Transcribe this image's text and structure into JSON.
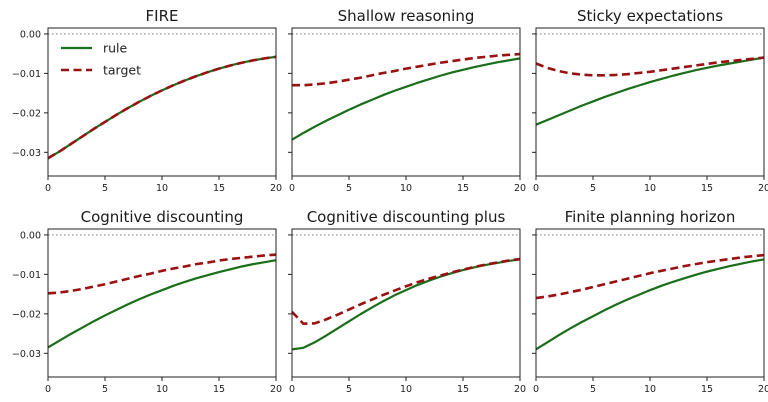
{
  "chart_data": {
    "type": "line",
    "layout": "2x3 grid",
    "legend": {
      "placement": "top-left of first panel",
      "entries": [
        "rule",
        "target"
      ]
    },
    "colors": {
      "rule": "#1a6e1a",
      "target": "#9b1010",
      "zero_line": "#888888"
    },
    "xlim": [
      0,
      20
    ],
    "ylim": [
      -0.036,
      0.0015
    ],
    "x_ticks": [
      0,
      5,
      10,
      15,
      20
    ],
    "x_tick_labels": [
      "0",
      "5",
      "10",
      "15",
      "20"
    ],
    "y_ticks": [
      0.0,
      -0.01,
      -0.02,
      -0.03
    ],
    "y_tick_labels": [
      "0.00",
      "−0.01",
      "−0.02",
      "−0.03"
    ],
    "x": [
      0,
      1,
      2,
      3,
      4,
      5,
      6,
      7,
      8,
      9,
      10,
      11,
      12,
      13,
      14,
      15,
      16,
      17,
      18,
      19,
      20
    ],
    "panels": [
      {
        "title": "FIRE",
        "series": [
          {
            "name": "rule",
            "style": "solid",
            "values": [
              -0.0315,
              -0.0298,
              -0.0279,
              -0.026,
              -0.0241,
              -0.0223,
              -0.0205,
              -0.0188,
              -0.0172,
              -0.0157,
              -0.0143,
              -0.013,
              -0.0118,
              -0.0107,
              -0.0097,
              -0.0088,
              -0.008,
              -0.0073,
              -0.0067,
              -0.0062,
              -0.0058
            ]
          },
          {
            "name": "target",
            "style": "dashed",
            "values": [
              -0.0315,
              -0.0298,
              -0.0279,
              -0.026,
              -0.0241,
              -0.0223,
              -0.0205,
              -0.0188,
              -0.0172,
              -0.0157,
              -0.0143,
              -0.013,
              -0.0118,
              -0.0107,
              -0.0097,
              -0.0088,
              -0.008,
              -0.0073,
              -0.0067,
              -0.0062,
              -0.0058
            ]
          }
        ]
      },
      {
        "title": "Shallow reasoning",
        "series": [
          {
            "name": "rule",
            "style": "solid",
            "values": [
              -0.0268,
              -0.0251,
              -0.0235,
              -0.022,
              -0.0206,
              -0.0192,
              -0.0179,
              -0.0167,
              -0.0155,
              -0.0144,
              -0.0134,
              -0.0124,
              -0.0115,
              -0.0106,
              -0.0098,
              -0.0091,
              -0.0084,
              -0.0078,
              -0.0072,
              -0.0067,
              -0.0062
            ]
          },
          {
            "name": "target",
            "style": "dashed",
            "values": [
              -0.013,
              -0.013,
              -0.0128,
              -0.0125,
              -0.0121,
              -0.0116,
              -0.0111,
              -0.0105,
              -0.0099,
              -0.0094,
              -0.0088,
              -0.0083,
              -0.0078,
              -0.0073,
              -0.0069,
              -0.0065,
              -0.0061,
              -0.0058,
              -0.0055,
              -0.0053,
              -0.0051
            ]
          }
        ]
      },
      {
        "title": "Sticky expectations",
        "series": [
          {
            "name": "rule",
            "style": "solid",
            "values": [
              -0.023,
              -0.0218,
              -0.0206,
              -0.0194,
              -0.0182,
              -0.0171,
              -0.016,
              -0.015,
              -0.014,
              -0.0131,
              -0.0122,
              -0.0114,
              -0.0106,
              -0.0099,
              -0.0092,
              -0.0086,
              -0.008,
              -0.0075,
              -0.007,
              -0.0065,
              -0.006
            ]
          },
          {
            "name": "target",
            "style": "dashed",
            "values": [
              -0.0075,
              -0.0086,
              -0.0094,
              -0.01,
              -0.0103,
              -0.0105,
              -0.0105,
              -0.0104,
              -0.0102,
              -0.0099,
              -0.0096,
              -0.0092,
              -0.0088,
              -0.0084,
              -0.008,
              -0.0076,
              -0.0072,
              -0.0069,
              -0.0066,
              -0.0063,
              -0.006
            ]
          }
        ]
      },
      {
        "title": "Cognitive discounting",
        "series": [
          {
            "name": "rule",
            "style": "solid",
            "values": [
              -0.0285,
              -0.0268,
              -0.0251,
              -0.0235,
              -0.0219,
              -0.0204,
              -0.019,
              -0.0176,
              -0.0163,
              -0.0151,
              -0.014,
              -0.0129,
              -0.0119,
              -0.011,
              -0.0102,
              -0.0094,
              -0.0087,
              -0.008,
              -0.0074,
              -0.0069,
              -0.0064
            ]
          },
          {
            "name": "target",
            "style": "dashed",
            "values": [
              -0.0148,
              -0.0146,
              -0.0142,
              -0.0137,
              -0.0131,
              -0.0125,
              -0.0118,
              -0.0111,
              -0.0104,
              -0.0098,
              -0.0091,
              -0.0085,
              -0.008,
              -0.0074,
              -0.007,
              -0.0065,
              -0.0061,
              -0.0058,
              -0.0055,
              -0.0052,
              -0.005
            ]
          }
        ]
      },
      {
        "title": "Cognitive discounting plus",
        "series": [
          {
            "name": "rule",
            "style": "solid",
            "values": [
              -0.029,
              -0.0286,
              -0.0272,
              -0.0255,
              -0.0237,
              -0.0219,
              -0.0201,
              -0.0184,
              -0.0168,
              -0.0153,
              -0.014,
              -0.0127,
              -0.0116,
              -0.0106,
              -0.0097,
              -0.0089,
              -0.0082,
              -0.0076,
              -0.0071,
              -0.0066,
              -0.0062
            ]
          },
          {
            "name": "target",
            "style": "dashed",
            "values": [
              -0.0195,
              -0.0225,
              -0.0224,
              -0.0214,
              -0.0202,
              -0.0189,
              -0.0176,
              -0.0164,
              -0.0152,
              -0.0141,
              -0.013,
              -0.012,
              -0.0111,
              -0.0103,
              -0.0095,
              -0.0088,
              -0.0081,
              -0.0075,
              -0.007,
              -0.0065,
              -0.0061
            ]
          }
        ]
      },
      {
        "title": "Finite planning horizon",
        "series": [
          {
            "name": "rule",
            "style": "solid",
            "values": [
              -0.029,
              -0.0272,
              -0.0254,
              -0.0237,
              -0.0221,
              -0.0206,
              -0.0191,
              -0.0177,
              -0.0164,
              -0.0152,
              -0.014,
              -0.0129,
              -0.0119,
              -0.011,
              -0.0101,
              -0.0093,
              -0.0086,
              -0.0079,
              -0.0073,
              -0.0067,
              -0.0062
            ]
          },
          {
            "name": "target",
            "style": "dashed",
            "values": [
              -0.016,
              -0.0156,
              -0.0151,
              -0.0145,
              -0.0139,
              -0.0132,
              -0.0125,
              -0.0118,
              -0.0111,
              -0.0104,
              -0.0097,
              -0.0091,
              -0.0085,
              -0.0079,
              -0.0074,
              -0.0069,
              -0.0065,
              -0.0061,
              -0.0057,
              -0.0054,
              -0.0051
            ]
          }
        ]
      }
    ]
  }
}
